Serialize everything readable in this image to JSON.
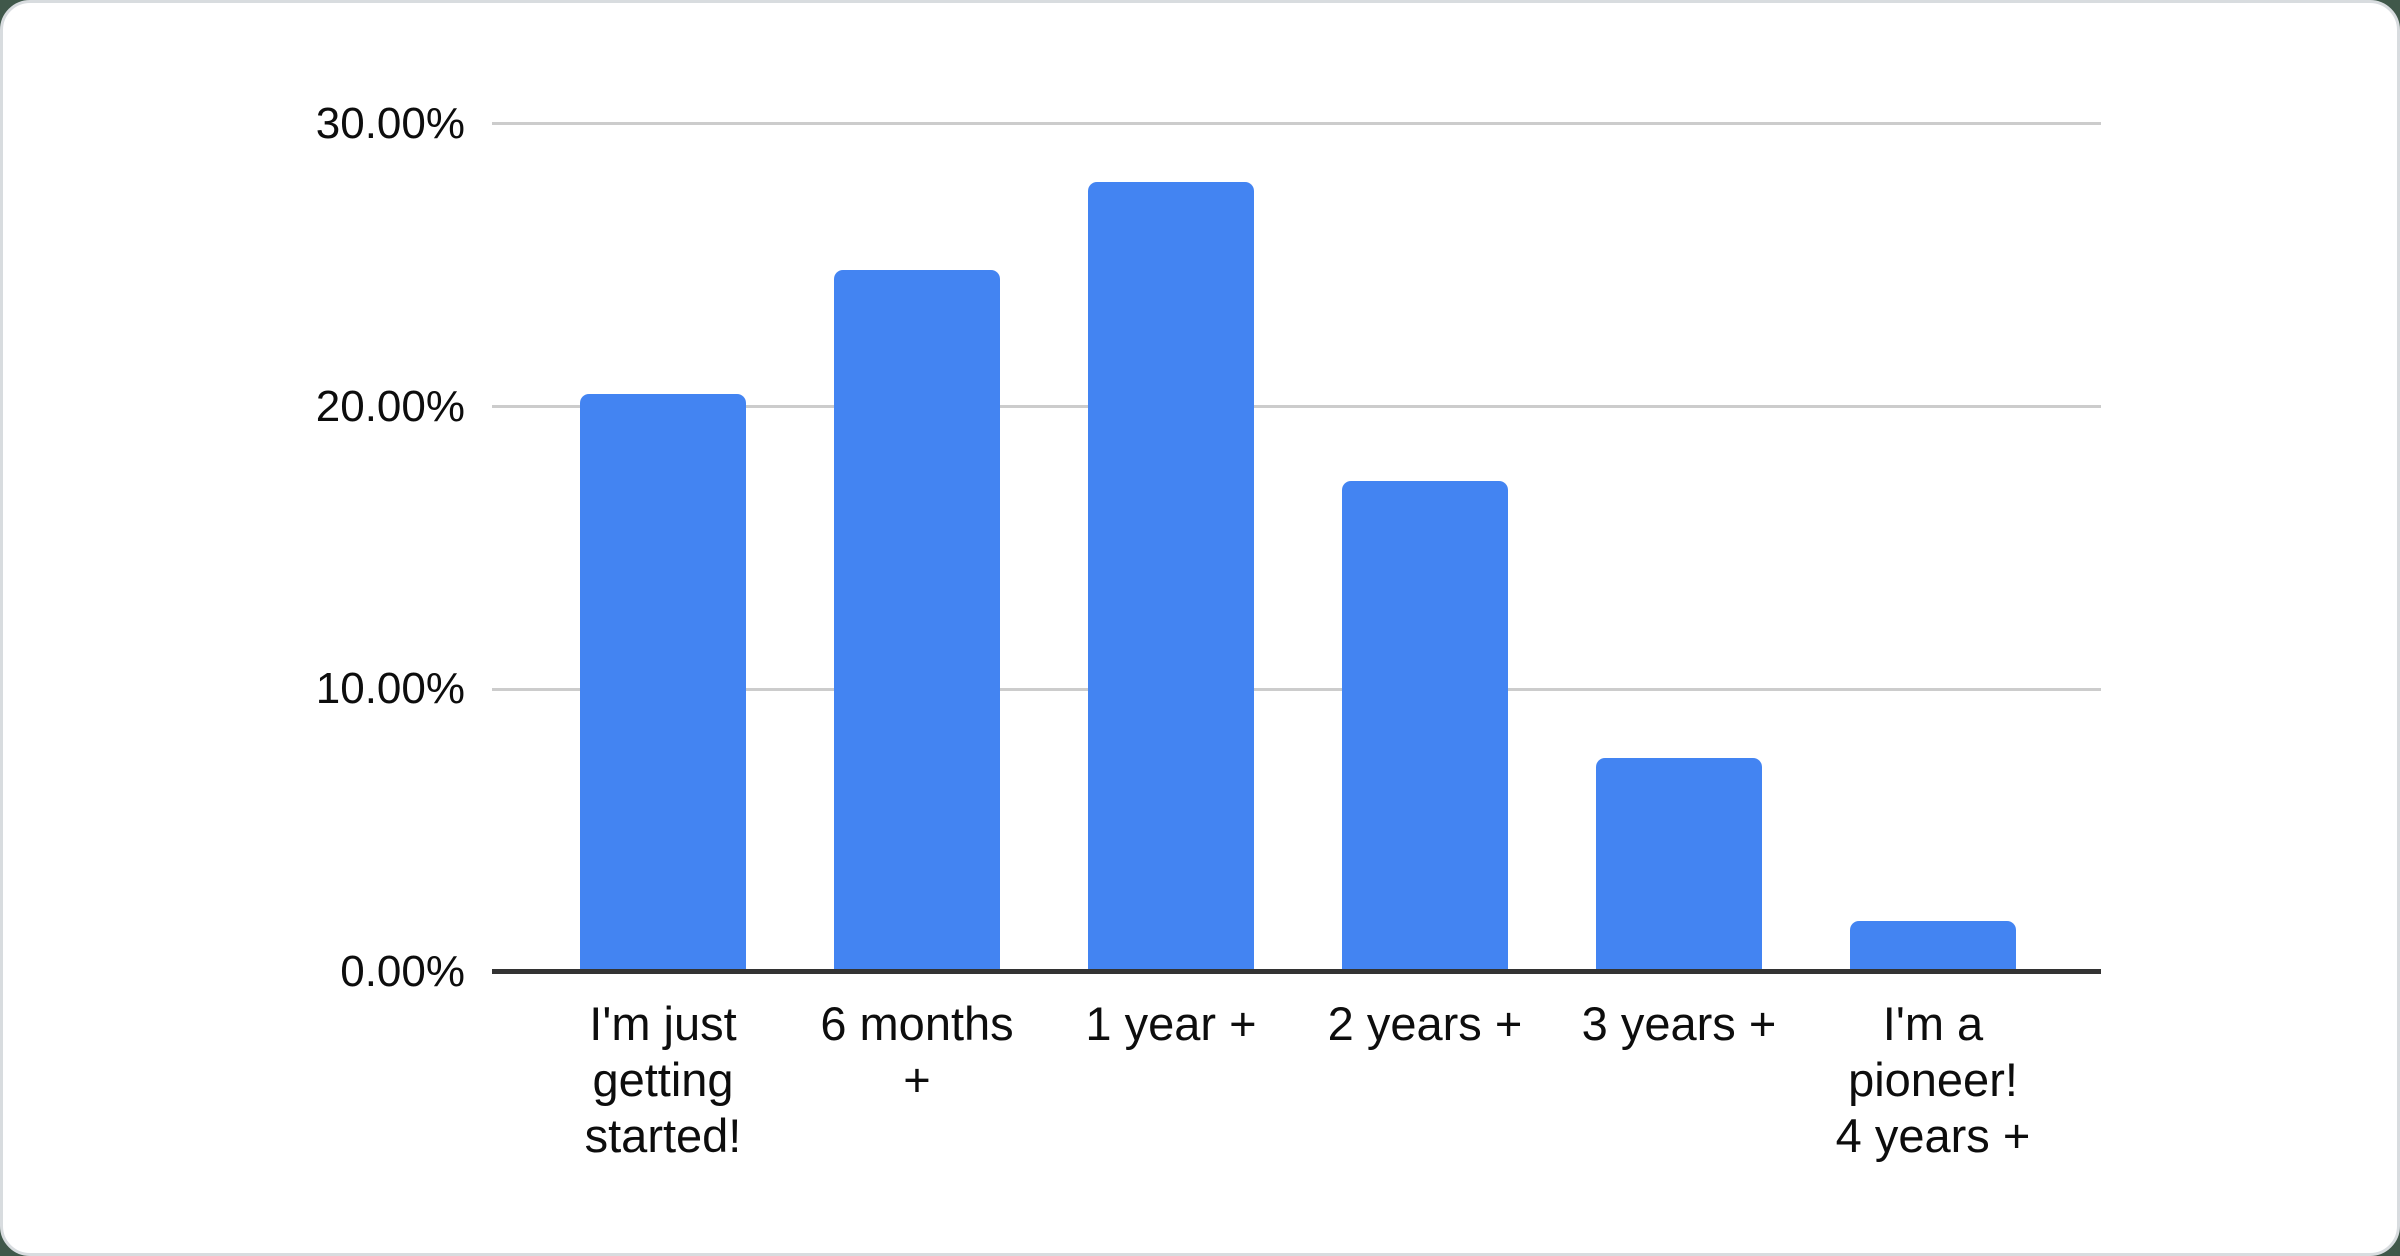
{
  "page": {
    "outer_background_color": "#40584a",
    "card_background_color": "#ffffff",
    "card_border_color": "#d8dcdf"
  },
  "chart_data": {
    "type": "bar",
    "title": "",
    "xlabel": "",
    "ylabel": "",
    "categories": [
      "I'm just getting started!",
      "6 months +",
      "1 year +",
      "2 years +",
      "3 years +",
      "I'm a pioneer! 4 years +"
    ],
    "category_display_lines": [
      "I'm just\ngetting\nstarted!",
      "6 months\n+",
      "1 year +",
      "2 years +",
      "3 years +",
      "I'm a\npioneer!\n4 years +"
    ],
    "values": [
      20.45,
      24.83,
      27.95,
      17.37,
      7.58,
      1.79
    ],
    "value_unit": "%",
    "y_ticks": [
      "0.00%",
      "10.00%",
      "20.00%",
      "30.00%"
    ],
    "y_tick_values": [
      0,
      10,
      20,
      30
    ],
    "ylim": [
      0,
      31
    ],
    "grid": true,
    "legend_position": "none",
    "bar_color": "#4384f2",
    "gridline_color": "#cccccc",
    "axis_line_color": "#333333",
    "label_color": "#0d0d0d"
  }
}
